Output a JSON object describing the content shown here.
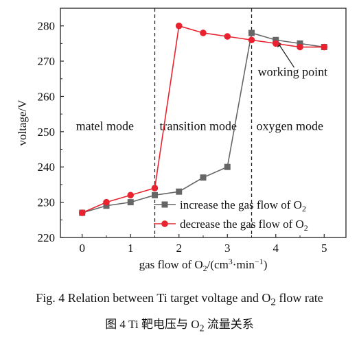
{
  "chart_data": {
    "type": "line",
    "xlabel_parts": {
      "pre": "gas flow of O",
      "sub": "2",
      "mid": "/(cm",
      "sup1": "3",
      "dot": "·min",
      "sup2": "−1",
      "post": ")"
    },
    "ylabel": "voltage/V",
    "xlim": [
      -0.45,
      5.45
    ],
    "ylim": [
      220,
      285
    ],
    "xticks": [
      0,
      1,
      2,
      3,
      4,
      5
    ],
    "yticks": [
      220,
      230,
      240,
      250,
      260,
      270,
      280
    ],
    "vlines": [
      1.5,
      3.5
    ],
    "regions": [
      "matel mode",
      "transition mode",
      "oxygen mode"
    ],
    "annotation": "working point",
    "annotation_target": [
      4,
      276
    ],
    "legend_position": "lower-right",
    "series": [
      {
        "name": "increase the gas flow of O",
        "name_sub": "2",
        "color": "#666666",
        "marker": "square",
        "x": [
          0,
          0.5,
          1,
          1.5,
          2,
          2.5,
          3,
          3.5,
          4,
          4.5,
          5
        ],
        "y": [
          227,
          229,
          230,
          232,
          233,
          237,
          240,
          278,
          276,
          275,
          274
        ]
      },
      {
        "name": "decrease the gas flow of O",
        "name_sub": "2",
        "color": "#e8232f",
        "marker": "circle",
        "x": [
          0,
          0.5,
          1,
          1.5,
          2,
          2.5,
          3,
          3.5,
          4,
          4.5,
          5
        ],
        "y": [
          227,
          230,
          232,
          234,
          280,
          278,
          277,
          276,
          275,
          274,
          274
        ]
      }
    ]
  },
  "caption": {
    "en_pre": "Fig. 4    Relation between Ti target voltage and O",
    "en_sub": "2",
    "en_post": " flow rate",
    "cn_pre": "图 4    Ti 靶电压与 O",
    "cn_sub": "2",
    "cn_post": " 流量关系"
  }
}
